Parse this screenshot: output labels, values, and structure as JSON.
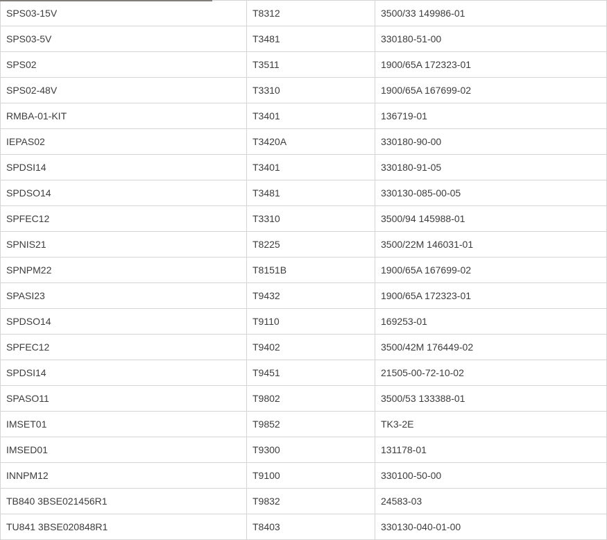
{
  "colors": {
    "background": "#ffffff",
    "border": "#d4d4d4",
    "text": "#3c3c3c",
    "top_partial_line": "#817d78"
  },
  "table": {
    "columns": [
      {
        "key": "col1"
      },
      {
        "key": "col2"
      },
      {
        "key": "col3"
      }
    ],
    "rows": [
      [
        "SPS03-15V",
        "T8312",
        "3500/33 149986-01"
      ],
      [
        "SPS03-5V",
        "T3481",
        "330180-51-00"
      ],
      [
        "SPS02",
        "T3511",
        "1900/65A 172323-01"
      ],
      [
        "SPS02-48V",
        "T3310",
        "1900/65A 167699-02"
      ],
      [
        "RMBA-01-KIT",
        "T3401",
        "136719-01"
      ],
      [
        "IEPAS02",
        "T3420A",
        "330180-90-00"
      ],
      [
        "SPDSI14",
        "T3401",
        "330180-91-05"
      ],
      [
        "SPDSO14",
        "T3481",
        "330130-085-00-05"
      ],
      [
        "SPFEC12",
        "T3310",
        "3500/94 145988-01"
      ],
      [
        "SPNIS21",
        "T8225",
        "3500/22M 146031-01"
      ],
      [
        "SPNPM22",
        "T8151B",
        "1900/65A 167699-02"
      ],
      [
        "SPASI23",
        "T9432",
        "1900/65A 172323-01"
      ],
      [
        "SPDSO14",
        "T9110",
        "169253-01"
      ],
      [
        "SPFEC12",
        "T9402",
        "3500/42M 176449-02"
      ],
      [
        "SPDSI14",
        "T9451",
        "21505-00-72-10-02"
      ],
      [
        "SPASO11",
        "T9802",
        "3500/53 133388-01"
      ],
      [
        "IMSET01",
        "T9852",
        "TK3-2E"
      ],
      [
        "IMSED01",
        "T9300",
        "131178-01"
      ],
      [
        "INNPM12",
        "T9100",
        "330100-50-00"
      ],
      [
        "TB840 3BSE021456R1",
        "T9832",
        "24583-03"
      ],
      [
        "TU841 3BSE020848R1",
        "T8403",
        "330130-040-01-00"
      ]
    ]
  }
}
